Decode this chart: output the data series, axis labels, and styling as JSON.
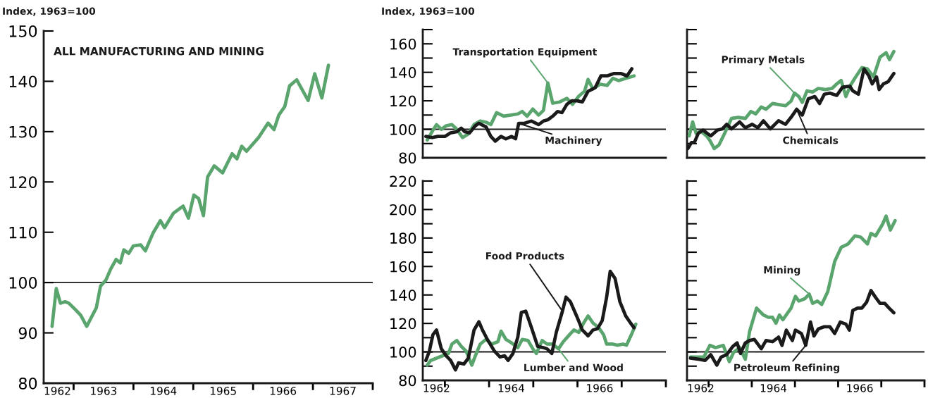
{
  "chart_data": [
    {
      "type": "line",
      "title": "ALL MANUFACTURING AND MINING",
      "ylabel": "Index, 1963=100",
      "xlim": [
        1962.5,
        1968
      ],
      "ylim": [
        80,
        150
      ],
      "yticks": [
        80,
        90,
        100,
        110,
        120,
        130,
        140,
        150
      ],
      "xticks": [
        {
          "value": 1962.5,
          "label": "1962"
        },
        {
          "value": 1963.5,
          "label": "1963"
        },
        {
          "value": 1964.5,
          "label": "1964"
        },
        {
          "value": 1965.5,
          "label": "1965"
        },
        {
          "value": 1966.5,
          "label": "1966"
        },
        {
          "value": 1967.5,
          "label": "1967"
        },
        {
          "value": 1963,
          "label": null
        },
        {
          "value": 1964,
          "label": null
        },
        {
          "value": 1965,
          "label": null
        },
        {
          "value": 1966,
          "label": null
        },
        {
          "value": 1967,
          "label": null
        },
        {
          "value": 1968,
          "label": null
        }
      ],
      "ref_lines": [
        {
          "axis": "y",
          "value": 100,
          "color": "#1a1a1a"
        }
      ],
      "series": [
        {
          "color": "#5aa46e",
          "x": [
            1962.64,
            1962.71,
            1962.78,
            1962.86,
            1962.92,
            1963.04,
            1963.12,
            1963.22,
            1963.38,
            1963.45,
            1963.54,
            1963.62,
            1963.71,
            1963.78,
            1963.84,
            1963.92,
            1964.0,
            1964.12,
            1964.2,
            1964.33,
            1964.45,
            1964.52,
            1964.67,
            1964.83,
            1964.92,
            1965.01,
            1965.09,
            1965.17,
            1965.24,
            1965.35,
            1965.49,
            1965.65,
            1965.73,
            1965.81,
            1965.89,
            1966.09,
            1966.25,
            1966.35,
            1966.43,
            1966.53,
            1966.61,
            1966.73,
            1966.92,
            1967.03,
            1967.15,
            1967.26
          ],
          "values": [
            91.3,
            98.8,
            95.9,
            96.2,
            95.9,
            94.5,
            93.5,
            91.3,
            95.0,
            99.3,
            100.5,
            102.7,
            104.6,
            103.9,
            106.5,
            105.8,
            107.3,
            107.5,
            106.3,
            109.9,
            112.3,
            110.9,
            113.8,
            115.2,
            112.8,
            117.4,
            116.7,
            113.3,
            121.0,
            123.2,
            121.8,
            125.6,
            124.6,
            127.1,
            126.1,
            128.8,
            131.7,
            130.4,
            133.3,
            135.0,
            139.1,
            140.3,
            136.2,
            141.5,
            136.7,
            143.2
          ]
        }
      ]
    },
    {
      "type": "line",
      "ylabel": "Index, 1963=100",
      "xlim": [
        1962.5,
        1968
      ],
      "ylim": [
        80,
        170
      ],
      "tick_labels": "y",
      "yticks": [
        80,
        100,
        120,
        140,
        160,
        {
          "value": 90,
          "label": null
        },
        {
          "value": 110,
          "label": null
        },
        {
          "value": 130,
          "label": null
        },
        {
          "value": 150,
          "label": null
        },
        {
          "value": 170,
          "label": null
        }
      ],
      "ref_lines": [
        {
          "axis": "y",
          "value": 100,
          "color": "#1a1a1a"
        }
      ],
      "series": [
        {
          "name": "Transportation Equipment",
          "color": "#5aa46e",
          "x": [
            1962.6,
            1962.71,
            1962.81,
            1962.92,
            1963.03,
            1963.16,
            1963.27,
            1963.4,
            1963.53,
            1963.66,
            1963.8,
            1963.93,
            1964.04,
            1964.17,
            1964.33,
            1964.49,
            1964.65,
            1964.75,
            1964.86,
            1964.99,
            1965.12,
            1965.23,
            1965.33,
            1965.44,
            1965.6,
            1965.76,
            1965.89,
            1966.03,
            1966.16,
            1966.24,
            1966.35,
            1966.51,
            1966.67,
            1966.8,
            1966.93,
            1967.09,
            1967.28
          ],
          "values": [
            92.5,
            98.3,
            103.3,
            100,
            102.5,
            103.3,
            100,
            94.2,
            96.7,
            103.3,
            105.8,
            105,
            103.3,
            111.7,
            109.2,
            110,
            110.8,
            112.5,
            109.2,
            114.2,
            110,
            113.3,
            132.5,
            118.3,
            119.2,
            121.7,
            117.5,
            123.3,
            126.7,
            135,
            128.3,
            131.7,
            130.8,
            135.8,
            134.2,
            135.8,
            137.5
          ]
        },
        {
          "name": "Machinery",
          "color": "#1a1a1a",
          "x": [
            1962.57,
            1962.71,
            1962.84,
            1963.0,
            1963.13,
            1963.27,
            1963.37,
            1963.45,
            1963.56,
            1963.69,
            1963.77,
            1963.93,
            1964.04,
            1964.14,
            1964.27,
            1964.38,
            1964.51,
            1964.6,
            1964.67,
            1964.8,
            1964.96,
            1965.12,
            1965.23,
            1965.33,
            1965.44,
            1965.55,
            1965.65,
            1965.76,
            1965.87,
            1966.0,
            1966.11,
            1966.24,
            1966.4,
            1966.53,
            1966.67,
            1966.83,
            1966.98,
            1967.12,
            1967.23
          ],
          "values": [
            95,
            94.2,
            95,
            95,
            97.5,
            98.3,
            100.8,
            98.3,
            97.5,
            102.5,
            104.2,
            101.7,
            95,
            91.7,
            95,
            93.3,
            95,
            93.3,
            104.2,
            104.2,
            105.8,
            103.3,
            105.8,
            106.7,
            109.2,
            112.5,
            111.7,
            117.5,
            120,
            120,
            119.2,
            126.7,
            129.2,
            137.5,
            137.5,
            139.2,
            139.2,
            137.5,
            142.5
          ]
        }
      ]
    },
    {
      "type": "line",
      "xlim": [
        1962.5,
        1968
      ],
      "ylim": [
        80,
        170
      ],
      "tick_labels": false,
      "yticks": [
        80,
        100,
        120,
        140,
        160,
        {
          "value": 90,
          "label": null
        },
        {
          "value": 110,
          "label": null
        },
        {
          "value": 130,
          "label": null
        },
        {
          "value": 150,
          "label": null
        },
        {
          "value": 170,
          "label": null
        }
      ],
      "ref_lines": [
        {
          "axis": "y",
          "value": 100,
          "color": "#1a1a1a"
        }
      ],
      "series": [
        {
          "name": "Primary Metals",
          "color": "#5aa46e",
          "x": [
            1962.55,
            1962.63,
            1962.71,
            1962.82,
            1962.95,
            1963.03,
            1963.13,
            1963.24,
            1963.37,
            1963.53,
            1963.69,
            1963.85,
            1963.98,
            1964.09,
            1964.22,
            1964.33,
            1964.48,
            1964.64,
            1964.78,
            1964.91,
            1964.99,
            1965.09,
            1965.17,
            1965.28,
            1965.41,
            1965.54,
            1965.7,
            1965.86,
            1965.97,
            1966.07,
            1966.18,
            1966.29,
            1966.39,
            1966.55,
            1966.68,
            1966.82,
            1966.97,
            1967.11,
            1967.19,
            1967.29
          ],
          "values": [
            95.4,
            105.2,
            97.1,
            98.7,
            95.4,
            92.2,
            86.5,
            89,
            97.1,
            107.6,
            108.4,
            107.6,
            112.5,
            110.8,
            115.7,
            114.1,
            118.1,
            117.3,
            116.5,
            119.8,
            125.4,
            123,
            118.9,
            127,
            126.2,
            128.7,
            127.9,
            128.7,
            131.9,
            134.3,
            123,
            131.1,
            136,
            143.3,
            142.4,
            136.8,
            150.6,
            153.8,
            148.9,
            154.6
          ]
        },
        {
          "name": "Chemicals",
          "color": "#1a1a1a",
          "x": [
            1962.52,
            1962.6,
            1962.68,
            1962.76,
            1962.87,
            1962.97,
            1963.05,
            1963.21,
            1963.32,
            1963.42,
            1963.53,
            1963.72,
            1963.85,
            1964.01,
            1964.14,
            1964.27,
            1964.43,
            1964.62,
            1964.78,
            1964.91,
            1965.04,
            1965.17,
            1965.31,
            1965.46,
            1965.57,
            1965.68,
            1965.81,
            1965.97,
            1966.1,
            1966.27,
            1966.34,
            1966.47,
            1966.6,
            1966.71,
            1966.79,
            1966.89,
            1966.95,
            1967.05,
            1967.16,
            1967.29
          ],
          "values": [
            86.5,
            90.6,
            91.4,
            97.1,
            99.5,
            97.1,
            95.4,
            99.5,
            100.3,
            103.5,
            100.3,
            105.2,
            101.1,
            103.5,
            101.1,
            106,
            100.3,
            106,
            103.5,
            108.4,
            114.1,
            110,
            121.4,
            123,
            118.1,
            124.6,
            125.4,
            123.8,
            129.5,
            130.3,
            127,
            124.6,
            142.4,
            137.6,
            131.9,
            136.8,
            127.9,
            131.9,
            133.5,
            139.2
          ]
        }
      ]
    },
    {
      "type": "line",
      "xlim": [
        1962.5,
        1968
      ],
      "ylim": [
        80,
        220
      ],
      "xticks": [
        {
          "value": 1962.5,
          "label": "1962"
        },
        {
          "value": 1964.5,
          "label": "1964"
        },
        {
          "value": 1966.5,
          "label": "1966"
        },
        {
          "value": 1963,
          "label": null
        },
        {
          "value": 1964,
          "label": null
        },
        {
          "value": 1965,
          "label": null
        },
        {
          "value": 1966,
          "label": null
        },
        {
          "value": 1967,
          "label": null
        },
        {
          "value": 1968,
          "label": null
        }
      ],
      "yticks": [
        80,
        100,
        120,
        140,
        160,
        180,
        200,
        220,
        {
          "value": 90,
          "label": null
        },
        {
          "value": 110,
          "label": null
        },
        {
          "value": 130,
          "label": null
        },
        {
          "value": 150,
          "label": null
        },
        {
          "value": 170,
          "label": null
        },
        {
          "value": 190,
          "label": null
        },
        {
          "value": 210,
          "label": null
        }
      ],
      "ref_lines": [
        {
          "axis": "y",
          "value": 100,
          "color": "#1a1a1a"
        }
      ],
      "series": [
        {
          "name": "Lumber and Wood",
          "color": "#5aa46e",
          "x": [
            1962.6,
            1962.68,
            1962.81,
            1962.95,
            1963.08,
            1963.16,
            1963.27,
            1963.37,
            1963.48,
            1963.61,
            1963.69,
            1963.8,
            1963.93,
            1964.06,
            1964.2,
            1964.27,
            1964.38,
            1964.51,
            1964.65,
            1964.75,
            1964.88,
            1964.99,
            1965.07,
            1965.2,
            1965.31,
            1965.44,
            1965.57,
            1965.68,
            1965.82,
            1965.92,
            1966.03,
            1966.14,
            1966.24,
            1966.35,
            1966.48,
            1966.59,
            1966.66,
            1966.8,
            1966.9,
            1967.03,
            1967.11,
            1967.22,
            1967.32
          ],
          "values": [
            90.7,
            94,
            95.6,
            97.3,
            98.9,
            105.5,
            108,
            103.9,
            100.6,
            90.7,
            97.3,
            105.5,
            108.8,
            105.5,
            107.2,
            114.6,
            108.8,
            106.3,
            103,
            108.8,
            108,
            102.2,
            98.9,
            108,
            105.5,
            105.5,
            102.2,
            107.2,
            112.1,
            115.4,
            113.7,
            120.3,
            125.3,
            120.3,
            117,
            112.1,
            105.5,
            105.5,
            104.7,
            105.5,
            104.7,
            112.1,
            119.5
          ]
        },
        {
          "name": "Food Products",
          "color": "#1a1a1a",
          "x": [
            1962.57,
            1962.65,
            1962.73,
            1962.81,
            1962.92,
            1963.03,
            1963.13,
            1963.24,
            1963.31,
            1963.43,
            1963.53,
            1963.66,
            1963.77,
            1963.85,
            1963.96,
            1964.12,
            1964.25,
            1964.35,
            1964.43,
            1964.54,
            1964.65,
            1964.73,
            1964.83,
            1964.96,
            1965.1,
            1965.23,
            1965.31,
            1965.42,
            1965.52,
            1965.66,
            1965.74,
            1965.84,
            1965.98,
            1966.11,
            1966.24,
            1966.35,
            1966.45,
            1966.56,
            1966.66,
            1966.74,
            1966.85,
            1966.96,
            1967.09,
            1967.2,
            1967.28
          ],
          "values": [
            94,
            100.6,
            112.1,
            115.4,
            102.2,
            97.3,
            94,
            87.4,
            92.3,
            91.5,
            95.6,
            115.4,
            121.2,
            115.4,
            108.8,
            100.6,
            96.4,
            97.3,
            94,
            98.9,
            110.4,
            127.7,
            128.6,
            117,
            103.9,
            103,
            102.2,
            98.9,
            113.7,
            128.6,
            138.5,
            135.2,
            125.3,
            115.4,
            111.3,
            115.4,
            116.2,
            122,
            138.5,
            156.6,
            151.6,
            135.2,
            125.3,
            120.3,
            117
          ]
        }
      ]
    },
    {
      "type": "line",
      "xlim": [
        1962.5,
        1968
      ],
      "ylim": [
        80,
        220
      ],
      "tick_labels": "x",
      "xticks": [
        {
          "value": 1962.5,
          "label": "1962"
        },
        {
          "value": 1964.5,
          "label": "1964"
        },
        {
          "value": 1966.5,
          "label": "1966"
        },
        {
          "value": 1963,
          "label": null
        },
        {
          "value": 1964,
          "label": null
        },
        {
          "value": 1965,
          "label": null
        },
        {
          "value": 1966,
          "label": null
        },
        {
          "value": 1967,
          "label": null
        },
        {
          "value": 1968,
          "label": null
        }
      ],
      "yticks": [
        80,
        100,
        120,
        140,
        160,
        180,
        200,
        220,
        {
          "value": 90,
          "label": null
        },
        {
          "value": 110,
          "label": null
        },
        {
          "value": 130,
          "label": null
        },
        {
          "value": 150,
          "label": null
        },
        {
          "value": 170,
          "label": null
        },
        {
          "value": 190,
          "label": null
        },
        {
          "value": 210,
          "label": null
        }
      ],
      "ref_lines": [
        {
          "axis": "y",
          "value": 100,
          "color": "#1a1a1a"
        }
      ],
      "series": [
        {
          "name": "Mining",
          "color": "#5aa46e",
          "x": [
            1962.58,
            1962.89,
            1963.03,
            1963.16,
            1963.34,
            1963.48,
            1963.58,
            1963.72,
            1963.85,
            1963.95,
            1964.11,
            1964.27,
            1964.38,
            1964.48,
            1964.56,
            1964.64,
            1964.72,
            1964.91,
            1965.01,
            1965.09,
            1965.23,
            1965.33,
            1965.41,
            1965.52,
            1965.62,
            1965.76,
            1965.86,
            1965.92,
            1966.07,
            1966.23,
            1966.39,
            1966.52,
            1966.68,
            1966.76,
            1966.87,
            1967.03,
            1967.11,
            1967.21,
            1967.32
          ],
          "values": [
            96.4,
            96.4,
            104.6,
            103,
            104.6,
            93.2,
            99.7,
            103,
            94.8,
            114.4,
            130.8,
            125.9,
            124.3,
            124.3,
            120.2,
            125.9,
            122.6,
            130.8,
            139,
            135.7,
            137.4,
            140.6,
            134.1,
            135.7,
            133.3,
            142.3,
            155.4,
            163.5,
            173.4,
            175.8,
            181.5,
            180.7,
            175.8,
            183.2,
            181.5,
            189.7,
            195.4,
            185.6,
            192.2
          ]
        },
        {
          "name": "Petroleum Refining",
          "color": "#1a1a1a",
          "x": [
            1962.58,
            1962.79,
            1962.92,
            1963.05,
            1963.19,
            1963.29,
            1963.42,
            1963.56,
            1963.66,
            1963.74,
            1963.85,
            1963.95,
            1964.06,
            1964.22,
            1964.33,
            1964.48,
            1964.62,
            1964.7,
            1964.8,
            1964.94,
            1965.01,
            1965.15,
            1965.25,
            1965.36,
            1965.44,
            1965.54,
            1965.68,
            1965.81,
            1965.92,
            1966.05,
            1966.18,
            1966.26,
            1966.34,
            1966.45,
            1966.55,
            1966.66,
            1966.76,
            1966.87,
            1966.97,
            1967.08,
            1967.18,
            1967.29
          ],
          "values": [
            95.6,
            94.8,
            94,
            98.1,
            90.7,
            96.4,
            98.1,
            103.8,
            106.3,
            98.9,
            106.3,
            108,
            108.8,
            102.2,
            108,
            107.2,
            110.4,
            104.6,
            115.3,
            108,
            115.3,
            112.9,
            104.6,
            121,
            111.2,
            116.1,
            117.7,
            117.7,
            112.9,
            121,
            119.5,
            115.3,
            129.2,
            130.8,
            130.8,
            134.9,
            143.1,
            138.2,
            134.1,
            134.1,
            130.8,
            127.5
          ]
        }
      ]
    }
  ]
}
